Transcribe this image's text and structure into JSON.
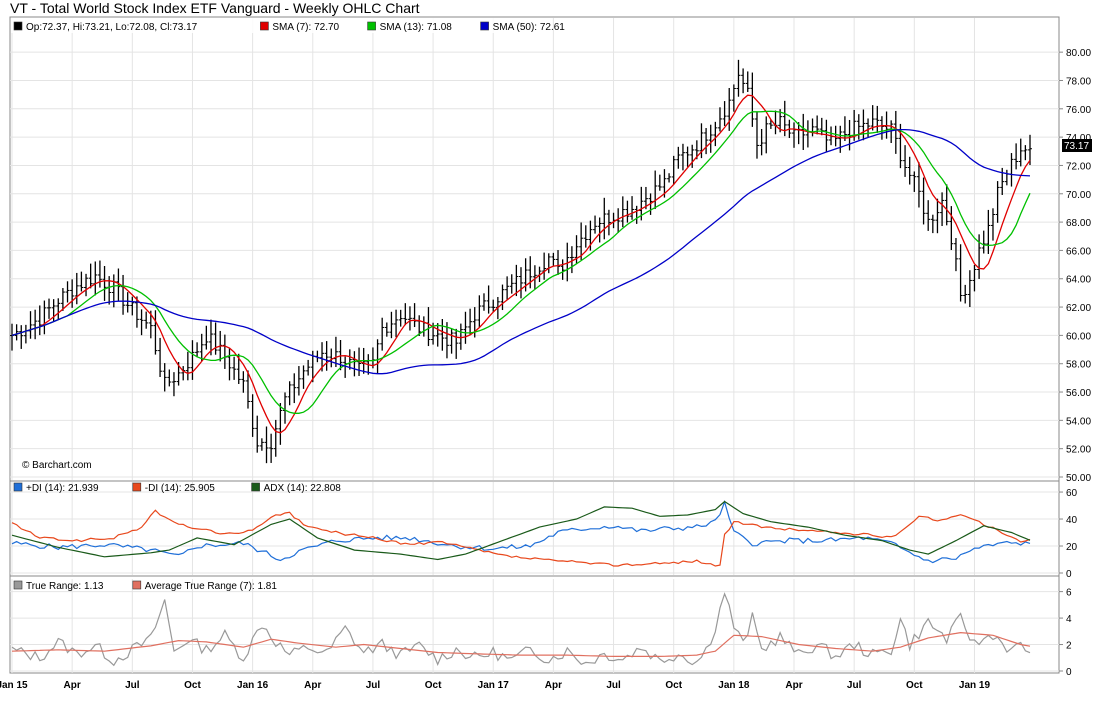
{
  "title": "VT - Total World Stock Index ETF Vanguard - Weekly OHLC Chart",
  "watermark": "© Barchart.com",
  "price_panel": {
    "legend": [
      {
        "text": "Op:72.37, Hi:73.21, Lo:72.08, Cl:73.17",
        "color": "#000000"
      },
      {
        "text": "SMA (7): 72.70",
        "color": "#e00000"
      },
      {
        "text": "SMA (13): 71.08",
        "color": "#00c000"
      },
      {
        "text": "SMA (50): 72.61",
        "color": "#0000c8"
      }
    ],
    "last_price_label": "73.17"
  },
  "dmi_panel": {
    "legend": [
      {
        "text": "+DI (14): 21.939",
        "color": "#1f6fd8"
      },
      {
        "text": "-DI (14): 25.905",
        "color": "#e8481c"
      },
      {
        "text": "ADX (14): 22.808",
        "color": "#1a5a1a"
      }
    ]
  },
  "atr_panel": {
    "legend": [
      {
        "text": "True Range: 1.13",
        "color": "#999999"
      },
      {
        "text": "Average True Range (7): 1.81",
        "color": "#e07060"
      }
    ]
  },
  "x_tick_labels": [
    "Jan 15",
    "Apr",
    "Jul",
    "Oct",
    "Jan 16",
    "Apr",
    "Jul",
    "Oct",
    "Jan 17",
    "Apr",
    "Jul",
    "Oct",
    "Jan 18",
    "Apr",
    "Jul",
    "Oct",
    "Jan 19"
  ],
  "chart_data": [
    {
      "type": "line",
      "panel": "price",
      "title": "VT - Total World Stock Index ETF Vanguard - Weekly OHLC Chart",
      "x_weeks": 221,
      "ylim": [
        50,
        81
      ],
      "yticks": [
        "50.00",
        "52.00",
        "54.00",
        "56.00",
        "58.00",
        "60.00",
        "62.00",
        "64.00",
        "66.00",
        "68.00",
        "70.00",
        "72.00",
        "74.00",
        "76.00",
        "78.00",
        "80.00"
      ],
      "close_anchors": [
        [
          0,
          60.0
        ],
        [
          6,
          61.2
        ],
        [
          10,
          62.5
        ],
        [
          14,
          63.5
        ],
        [
          18,
          64.2
        ],
        [
          22,
          63.3
        ],
        [
          26,
          61.8
        ],
        [
          30,
          60.5
        ],
        [
          33,
          56.5
        ],
        [
          36,
          57.3
        ],
        [
          39,
          58.5
        ],
        [
          42,
          60.0
        ],
        [
          46,
          58.5
        ],
        [
          50,
          56.5
        ],
        [
          53,
          52.5
        ],
        [
          56,
          52.5
        ],
        [
          59,
          55.5
        ],
        [
          63,
          57.5
        ],
        [
          67,
          58.8
        ],
        [
          71,
          58.5
        ],
        [
          75,
          57.5
        ],
        [
          78,
          58.0
        ],
        [
          80,
          60.5
        ],
        [
          84,
          61.5
        ],
        [
          88,
          60.5
        ],
        [
          92,
          60.0
        ],
        [
          96,
          59.5
        ],
        [
          100,
          61.5
        ],
        [
          104,
          62.5
        ],
        [
          108,
          63.5
        ],
        [
          112,
          64.5
        ],
        [
          116,
          65.5
        ],
        [
          118,
          64.5
        ],
        [
          122,
          66.5
        ],
        [
          126,
          68.0
        ],
        [
          130,
          68.5
        ],
        [
          134,
          69.0
        ],
        [
          138,
          70.0
        ],
        [
          141,
          70.8
        ],
        [
          144,
          72.5
        ],
        [
          148,
          73.5
        ],
        [
          152,
          75.0
        ],
        [
          155,
          76.5
        ],
        [
          157,
          78.5
        ],
        [
          159,
          77.0
        ],
        [
          161,
          73.5
        ],
        [
          163,
          74.5
        ],
        [
          166,
          75.0
        ],
        [
          169,
          74.0
        ],
        [
          173,
          74.5
        ],
        [
          177,
          73.5
        ],
        [
          181,
          74.5
        ],
        [
          186,
          75.0
        ],
        [
          190,
          74.5
        ],
        [
          193,
          72.0
        ],
        [
          196,
          70.0
        ],
        [
          198,
          68.0
        ],
        [
          201,
          69.5
        ],
        [
          203,
          67.0
        ],
        [
          205,
          62.8
        ],
        [
          207,
          64.0
        ],
        [
          209,
          66.0
        ],
        [
          211,
          67.5
        ],
        [
          213,
          70.0
        ],
        [
          215,
          71.5
        ],
        [
          218,
          73.2
        ],
        [
          221,
          73.17
        ]
      ],
      "series": [
        {
          "name": "SMA (7)",
          "color": "#e00000",
          "window": 7,
          "last_value": 72.7
        },
        {
          "name": "SMA (13)",
          "color": "#00c000",
          "window": 13,
          "last_value": 71.08
        },
        {
          "name": "SMA (50)",
          "color": "#0000c8",
          "window": 50,
          "last_value": 72.61
        }
      ]
    },
    {
      "type": "line",
      "panel": "dmi",
      "ylim": [
        0,
        63
      ],
      "yticks": [
        "0",
        "20",
        "40",
        "60"
      ],
      "series": [
        {
          "name": "+DI (14)",
          "color": "#1f6fd8",
          "anchors": [
            [
              0,
              22
            ],
            [
              10,
              19
            ],
            [
              20,
              21
            ],
            [
              30,
              17
            ],
            [
              36,
              12
            ],
            [
              40,
              20
            ],
            [
              50,
              22
            ],
            [
              58,
              10
            ],
            [
              62,
              16
            ],
            [
              70,
              24
            ],
            [
              78,
              26
            ],
            [
              86,
              26
            ],
            [
              96,
              20
            ],
            [
              104,
              18
            ],
            [
              112,
              20
            ],
            [
              118,
              30
            ],
            [
              124,
              33
            ],
            [
              130,
              35
            ],
            [
              136,
              31
            ],
            [
              142,
              33
            ],
            [
              148,
              34
            ],
            [
              152,
              38
            ],
            [
              154,
              51
            ],
            [
              156,
              30
            ],
            [
              160,
              22
            ],
            [
              168,
              24
            ],
            [
              176,
              24
            ],
            [
              184,
              26
            ],
            [
              190,
              22
            ],
            [
              194,
              15
            ],
            [
              198,
              9
            ],
            [
              204,
              11
            ],
            [
              208,
              18
            ],
            [
              214,
              22
            ],
            [
              221,
              21.939
            ]
          ],
          "last_value": 21.939
        },
        {
          "name": "-DI (14)",
          "color": "#e8481c",
          "anchors": [
            [
              0,
              37
            ],
            [
              6,
              26
            ],
            [
              14,
              24
            ],
            [
              22,
              26
            ],
            [
              28,
              34
            ],
            [
              31,
              46
            ],
            [
              35,
              37
            ],
            [
              40,
              33
            ],
            [
              46,
              29
            ],
            [
              52,
              31
            ],
            [
              56,
              42
            ],
            [
              60,
              44
            ],
            [
              64,
              34
            ],
            [
              70,
              30
            ],
            [
              78,
              26
            ],
            [
              86,
              21
            ],
            [
              92,
              23
            ],
            [
              98,
              19
            ],
            [
              106,
              13
            ],
            [
              114,
              10
            ],
            [
              122,
              8
            ],
            [
              130,
              6
            ],
            [
              140,
              7
            ],
            [
              148,
              9
            ],
            [
              153,
              5
            ],
            [
              154,
              28
            ],
            [
              156,
              38
            ],
            [
              162,
              34
            ],
            [
              170,
              32
            ],
            [
              178,
              30
            ],
            [
              186,
              28
            ],
            [
              190,
              26
            ],
            [
              194,
              36
            ],
            [
              196,
              43
            ],
            [
              200,
              39
            ],
            [
              206,
              43
            ],
            [
              212,
              33
            ],
            [
              218,
              23
            ],
            [
              221,
              25.905
            ]
          ],
          "last_value": 25.905
        },
        {
          "name": "ADX (14)",
          "color": "#1a5a1a",
          "anchors": [
            [
              0,
              28
            ],
            [
              10,
              19
            ],
            [
              20,
              12
            ],
            [
              30,
              15
            ],
            [
              34,
              17
            ],
            [
              40,
              26
            ],
            [
              48,
              21
            ],
            [
              56,
              36
            ],
            [
              60,
              40
            ],
            [
              66,
              26
            ],
            [
              74,
              17
            ],
            [
              84,
              14
            ],
            [
              92,
              10
            ],
            [
              98,
              14
            ],
            [
              106,
              24
            ],
            [
              114,
              34
            ],
            [
              122,
              40
            ],
            [
              128,
              49
            ],
            [
              134,
              48
            ],
            [
              140,
              42
            ],
            [
              146,
              43
            ],
            [
              152,
              47
            ],
            [
              154,
              53
            ],
            [
              158,
              44
            ],
            [
              164,
              38
            ],
            [
              172,
              34
            ],
            [
              180,
              28
            ],
            [
              188,
              24
            ],
            [
              194,
              17
            ],
            [
              198,
              14
            ],
            [
              204,
              24
            ],
            [
              210,
              35
            ],
            [
              216,
              30
            ],
            [
              221,
              22.808
            ]
          ],
          "last_value": 22.808
        }
      ]
    },
    {
      "type": "line",
      "panel": "atr",
      "ylim": [
        0,
        6.5
      ],
      "yticks": [
        "0",
        "2",
        "4",
        "6"
      ],
      "series": [
        {
          "name": "True Range",
          "color": "#999999",
          "anchors": [
            [
              0,
              1.6
            ],
            [
              6,
              1.0
            ],
            [
              10,
              2.2
            ],
            [
              14,
              1.3
            ],
            [
              18,
              1.9
            ],
            [
              22,
              0.8
            ],
            [
              26,
              1.6
            ],
            [
              30,
              2.4
            ],
            [
              33,
              5.3
            ],
            [
              35,
              1.5
            ],
            [
              38,
              2.4
            ],
            [
              42,
              1.6
            ],
            [
              46,
              2.7
            ],
            [
              50,
              1.0
            ],
            [
              54,
              3.6
            ],
            [
              57,
              2.2
            ],
            [
              60,
              1.2
            ],
            [
              64,
              1.8
            ],
            [
              68,
              1.3
            ],
            [
              72,
              3.2
            ],
            [
              76,
              1.4
            ],
            [
              80,
              2.0
            ],
            [
              84,
              1.2
            ],
            [
              88,
              1.9
            ],
            [
              92,
              0.9
            ],
            [
              96,
              1.6
            ],
            [
              100,
              1.0
            ],
            [
              104,
              1.4
            ],
            [
              108,
              0.8
            ],
            [
              112,
              1.6
            ],
            [
              116,
              0.9
            ],
            [
              120,
              1.5
            ],
            [
              124,
              0.6
            ],
            [
              128,
              1.3
            ],
            [
              132,
              0.9
            ],
            [
              136,
              1.8
            ],
            [
              140,
              0.8
            ],
            [
              144,
              1.3
            ],
            [
              148,
              0.7
            ],
            [
              150,
              1.6
            ],
            [
              152,
              3.3
            ],
            [
              154,
              6.0
            ],
            [
              156,
              3.4
            ],
            [
              158,
              2.0
            ],
            [
              160,
              4.0
            ],
            [
              162,
              1.6
            ],
            [
              166,
              2.6
            ],
            [
              170,
              1.2
            ],
            [
              174,
              2.0
            ],
            [
              178,
              1.1
            ],
            [
              182,
              2.0
            ],
            [
              186,
              1.2
            ],
            [
              190,
              1.6
            ],
            [
              192,
              3.9
            ],
            [
              194,
              2.0
            ],
            [
              198,
              3.7
            ],
            [
              202,
              2.4
            ],
            [
              205,
              4.0
            ],
            [
              208,
              2.0
            ],
            [
              212,
              2.8
            ],
            [
              216,
              1.5
            ],
            [
              218,
              1.9
            ],
            [
              221,
              1.13
            ]
          ],
          "last_value": 1.13
        },
        {
          "name": "Average True Range (7)",
          "color": "#e07060",
          "anchors": [
            [
              0,
              1.5
            ],
            [
              10,
              1.6
            ],
            [
              20,
              1.5
            ],
            [
              30,
              1.9
            ],
            [
              36,
              2.3
            ],
            [
              42,
              2.2
            ],
            [
              50,
              1.8
            ],
            [
              56,
              2.4
            ],
            [
              62,
              2.1
            ],
            [
              70,
              1.8
            ],
            [
              76,
              2.0
            ],
            [
              84,
              1.7
            ],
            [
              92,
              1.4
            ],
            [
              100,
              1.3
            ],
            [
              110,
              1.2
            ],
            [
              120,
              1.2
            ],
            [
              130,
              1.1
            ],
            [
              140,
              1.1
            ],
            [
              148,
              1.2
            ],
            [
              152,
              1.5
            ],
            [
              156,
              2.7
            ],
            [
              162,
              2.6
            ],
            [
              170,
              2.0
            ],
            [
              178,
              1.7
            ],
            [
              186,
              1.5
            ],
            [
              192,
              1.8
            ],
            [
              198,
              2.5
            ],
            [
              205,
              2.9
            ],
            [
              212,
              2.7
            ],
            [
              218,
              2.0
            ],
            [
              221,
              1.81
            ]
          ],
          "last_value": 1.81
        }
      ]
    }
  ]
}
